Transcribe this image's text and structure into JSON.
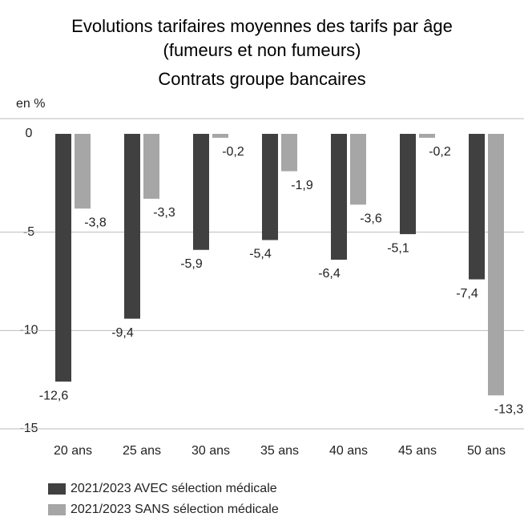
{
  "chart_data": {
    "type": "bar",
    "title": [
      "Evolutions tarifaires moyennes des tarifs par âge",
      "(fumeurs et non fumeurs)",
      "Contrats groupe bancaires"
    ],
    "y_label": "en %",
    "categories": [
      "20 ans",
      "25 ans",
      "30 ans",
      "35 ans",
      "40 ans",
      "45 ans",
      "50 ans"
    ],
    "series": [
      {
        "name": "2021/2023 AVEC sélection médicale",
        "color": "#404040",
        "values": [
          -12.6,
          -9.4,
          -5.9,
          -5.4,
          -6.4,
          -5.1,
          -7.4
        ],
        "value_labels": [
          "-12,6",
          "-9,4",
          "-5,9",
          "-5,4",
          "-6,4",
          "-5,1",
          "-7,4"
        ]
      },
      {
        "name": "2021/2023 SANS sélection médicale",
        "color": "#a6a6a6",
        "values": [
          -3.8,
          -3.3,
          -0.2,
          -1.9,
          -3.6,
          -0.2,
          -13.3
        ],
        "value_labels": [
          "-3,8",
          "-3,3",
          "-0,2",
          "-1,9",
          "-3,6",
          "-0,2",
          "-13,3"
        ]
      }
    ],
    "ylim": [
      -15,
      0
    ],
    "yticks": [
      0,
      -5,
      -10,
      -15
    ],
    "grid": true
  }
}
